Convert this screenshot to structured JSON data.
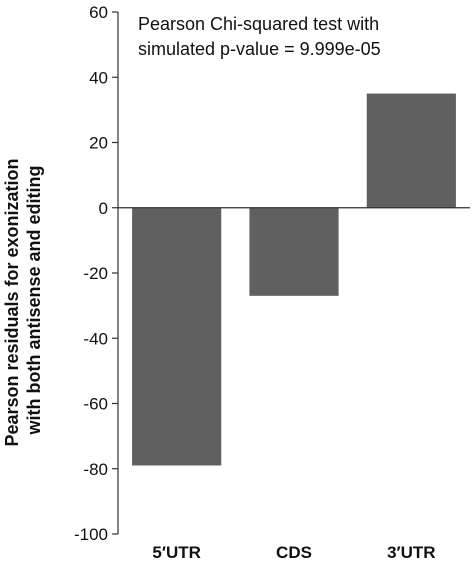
{
  "chart_data": {
    "type": "bar",
    "categories": [
      "5′UTR",
      "CDS",
      "3′UTR"
    ],
    "values": [
      -79,
      -27,
      35
    ],
    "title": "",
    "xlabel": "",
    "ylabel_lines": [
      "Pearson residuals for exonization",
      "with both antisense and editing"
    ],
    "ylim": [
      -100,
      60
    ],
    "yticks": [
      60,
      40,
      20,
      0,
      -20,
      -40,
      -60,
      -80,
      -100
    ],
    "annotation_lines": [
      "Pearson Chi-squared test with",
      "simulated p-value = 9.999e-05"
    ],
    "bar_color": "#606060",
    "grid": false,
    "legend": "none"
  }
}
